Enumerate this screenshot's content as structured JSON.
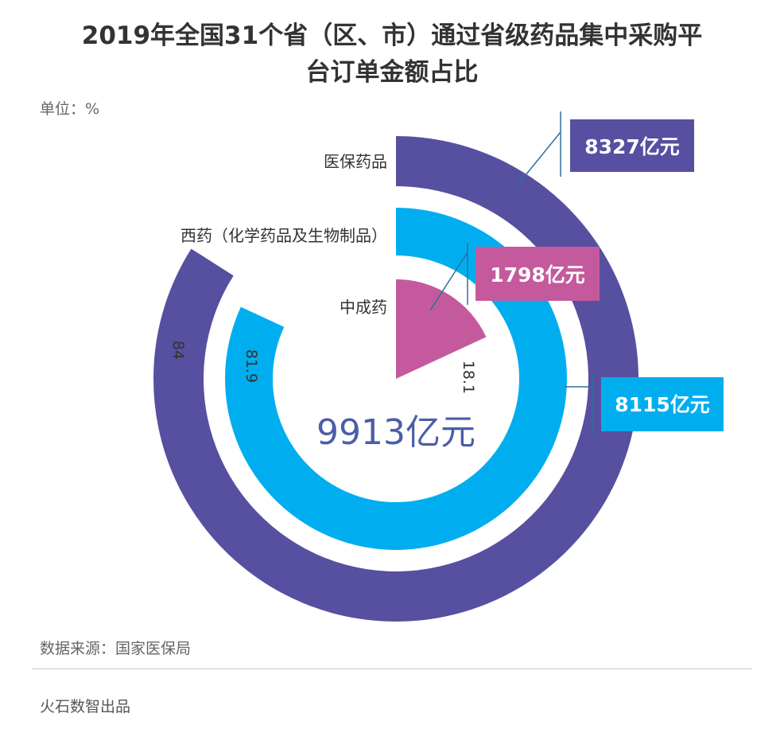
{
  "header": {
    "title_line1": "2019年全国31个省（区、市）通过省级药品集中采购平",
    "title_line2": "台订单金额占比",
    "unit": "单位：%"
  },
  "footer": {
    "source": "数据来源：国家医保局",
    "credit": "火石数智出品"
  },
  "chart_data": {
    "type": "radial-bar",
    "unit": "%",
    "max": 100,
    "center_label": "9913亿元",
    "series": [
      {
        "category": "医保药品",
        "value": 84,
        "value_label": "84",
        "amount": "8327亿元",
        "color": "#574fa0"
      },
      {
        "category": "西药（化学药品及生物制品）",
        "value": 81.9,
        "value_label": "81.9",
        "amount": "8115亿元",
        "color": "#00aeef"
      },
      {
        "category": "中成药",
        "value": 18.1,
        "value_label": "18.1",
        "amount": "1798亿元",
        "color": "#c45a9d"
      }
    ]
  }
}
